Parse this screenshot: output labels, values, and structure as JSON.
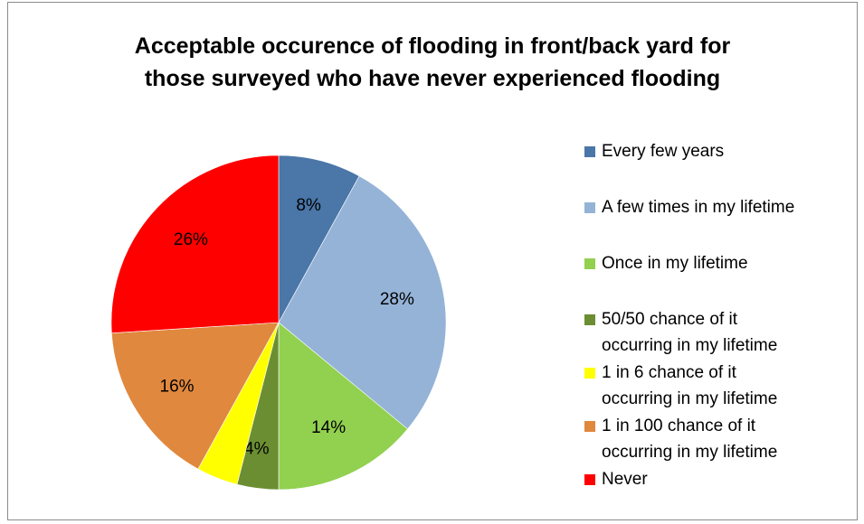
{
  "chart_data": {
    "type": "pie",
    "title_lines": [
      "Acceptable occurence of flooding in front/back yard for",
      "those surveyed who have never experienced flooding"
    ],
    "categories": [
      "Every few years",
      "A few times in my lifetime",
      "Once in my lifetime",
      "50/50 chance of it occurring in my lifetime",
      "1 in 6 chance of it occurring in my lifetime",
      "1 in 100 chance of it occurring in my lifetime",
      "Never"
    ],
    "legend_lines": [
      [
        "Every few years"
      ],
      [
        "A few times in my lifetime"
      ],
      [
        "Once in my lifetime"
      ],
      [
        "50/50 chance of it",
        "occurring in my lifetime"
      ],
      [
        "1 in 6 chance of it",
        "occurring in my lifetime"
      ],
      [
        "1 in 100 chance of it",
        "occurring in my lifetime"
      ],
      [
        "Never"
      ]
    ],
    "values": [
      8,
      28,
      14,
      4,
      4,
      16,
      26
    ],
    "data_labels": [
      "8%",
      "28%",
      "14%",
      "4%",
      "4%",
      "16%",
      "26%"
    ],
    "colors": [
      "#4a76a8",
      "#95b3d7",
      "#92d050",
      "#6b8e33",
      "#ffff00",
      "#e0883e",
      "#ff0000"
    ],
    "legend_position": "right",
    "start_angle_degrees": 0,
    "direction": "clockwise"
  }
}
